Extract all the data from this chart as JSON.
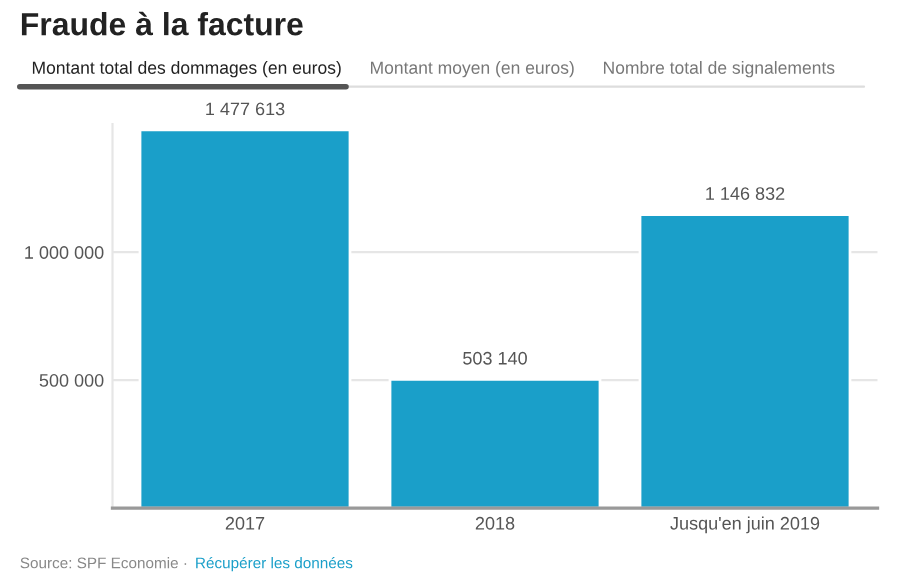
{
  "chart_data": {
    "type": "bar",
    "title": "Fraude à la facture",
    "categories": [
      "2017",
      "2018",
      "Jusqu'en juin 2019"
    ],
    "values": [
      1477613,
      503140,
      1146832
    ],
    "value_labels": [
      "1 477 613",
      "503 140",
      "1 146 832"
    ],
    "color": "#1a9fc9",
    "ylim": [
      0,
      1500000
    ],
    "yticks": [
      {
        "value": 500000,
        "label": "500 000"
      },
      {
        "value": 1000000,
        "label": "1 000 000"
      }
    ],
    "grid": "y",
    "annotations": [
      "Montant total des dommages (en euros)",
      "Montant moyen (en euros)",
      "Nombre total de signalements",
      "Source: SPF Economie · ",
      "Récupérer les données"
    ]
  }
}
